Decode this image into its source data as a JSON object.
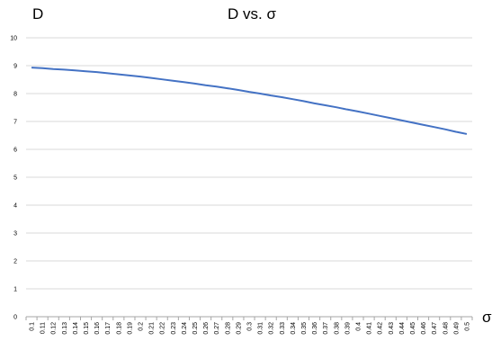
{
  "chart_data": {
    "type": "line",
    "title": "D vs. σ",
    "xlabel": "σ",
    "ylabel": "D",
    "x": [
      0.1,
      0.11,
      0.12,
      0.13,
      0.14,
      0.15,
      0.16,
      0.17,
      0.18,
      0.19,
      0.2,
      0.21,
      0.22,
      0.23,
      0.24,
      0.25,
      0.26,
      0.27,
      0.28,
      0.29,
      0.3,
      0.31,
      0.32,
      0.33,
      0.34,
      0.35,
      0.36,
      0.37,
      0.38,
      0.39,
      0.4,
      0.41,
      0.42,
      0.43,
      0.44,
      0.45,
      0.46,
      0.47,
      0.48,
      0.49,
      0.5
    ],
    "x_tick_labels": [
      "0.1",
      "0.11",
      "0.12",
      "0.13",
      "0.14",
      "0.15",
      "0.16",
      "0.17",
      "0.18",
      "0.19",
      "0.2",
      "0.21",
      "0.22",
      "0.23",
      "0.24",
      "0.25",
      "0.26",
      "0.27",
      "0.28",
      "0.29",
      "0.3",
      "0.31",
      "0.32",
      "0.33",
      "0.34",
      "0.35",
      "0.36",
      "0.37",
      "0.38",
      "0.39",
      "0.4",
      "0.41",
      "0.42",
      "0.43",
      "0.44",
      "0.45",
      "0.46",
      "0.47",
      "0.48",
      "0.49",
      "0.5"
    ],
    "series": [
      {
        "values": [
          8.93,
          8.91,
          8.88,
          8.86,
          8.83,
          8.8,
          8.77,
          8.73,
          8.69,
          8.65,
          8.61,
          8.56,
          8.51,
          8.46,
          8.41,
          8.36,
          8.3,
          8.25,
          8.19,
          8.13,
          8.06,
          8.0,
          7.93,
          7.87,
          7.8,
          7.73,
          7.65,
          7.58,
          7.51,
          7.43,
          7.36,
          7.28,
          7.2,
          7.12,
          7.04,
          6.96,
          6.88,
          6.8,
          6.72,
          6.63,
          6.55
        ],
        "color": "#4472c4"
      }
    ],
    "ylim": [
      0,
      10
    ],
    "y_ticks": [
      0,
      1,
      2,
      3,
      4,
      5,
      6,
      7,
      8,
      9,
      10
    ],
    "grid": true,
    "legend": "none"
  }
}
